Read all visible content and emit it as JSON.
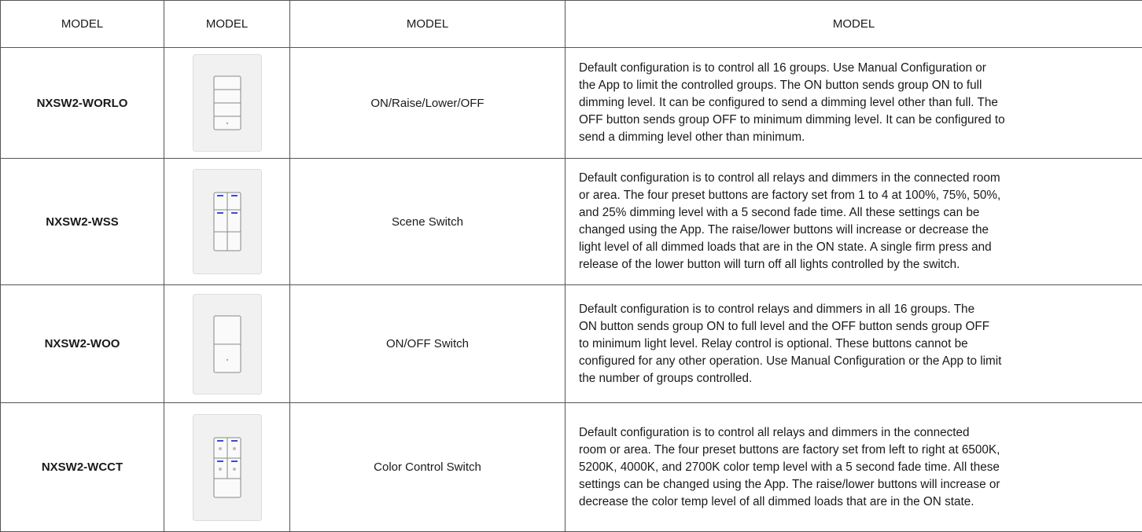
{
  "table": {
    "header": [
      "MODEL",
      "MODEL",
      "MODEL",
      "MODEL"
    ],
    "rows": [
      {
        "model": "NXSW2-WORLO",
        "function": "ON/Raise/Lower/OFF",
        "description": [
          "Default configuration is to control all 16 groups. Use Manual Configuration or",
          "the App to limit the controlled groups. The ON button sends group ON to full",
          "dimming level. It can be configured to send a dimming level other than full. The",
          "OFF button sends group OFF to minimum dimming level. It can be configured to",
          "send a dimming level other than minimum."
        ]
      },
      {
        "model": "NXSW2-WSS",
        "function": "Scene Switch",
        "description": [
          "Default configuration is to control all relays and dimmers in the connected room",
          "or area. The four preset buttons are factory set from 1 to 4 at 100%, 75%, 50%,",
          "and 25% dimming level with a 5 second fade time. All these settings can be",
          "changed using the App. The raise/lower buttons will increase or decrease the",
          "light level of all dimmed loads that are in the ON state. A single firm press and",
          "release of the lower button will turn off all lights controlled by the switch."
        ]
      },
      {
        "model": "NXSW2-WOO",
        "function": "ON/OFF Switch",
        "description": [
          "Default configuration is to control relays and dimmers in all 16 groups. The",
          "ON button sends group ON to full level and the OFF button sends group OFF",
          "to minimum light level. Relay control is optional. These buttons cannot be",
          "configured for any other operation. Use Manual Configuration or the App to limit",
          "the number of groups controlled."
        ]
      },
      {
        "model": "NXSW2-WCCT",
        "function": "Color Control Switch",
        "description": [
          "Default configuration is to control all relays and dimmers in the connected",
          "room or area. The four preset buttons are factory set from left to right at 6500K,",
          "5200K, 4000K, and 2700K color temp level with a 5 second fade time. All these",
          "settings can be changed using the App. The raise/lower buttons will increase or",
          "decrease the color temp level of all dimmed loads that are in the ON state."
        ]
      }
    ]
  }
}
